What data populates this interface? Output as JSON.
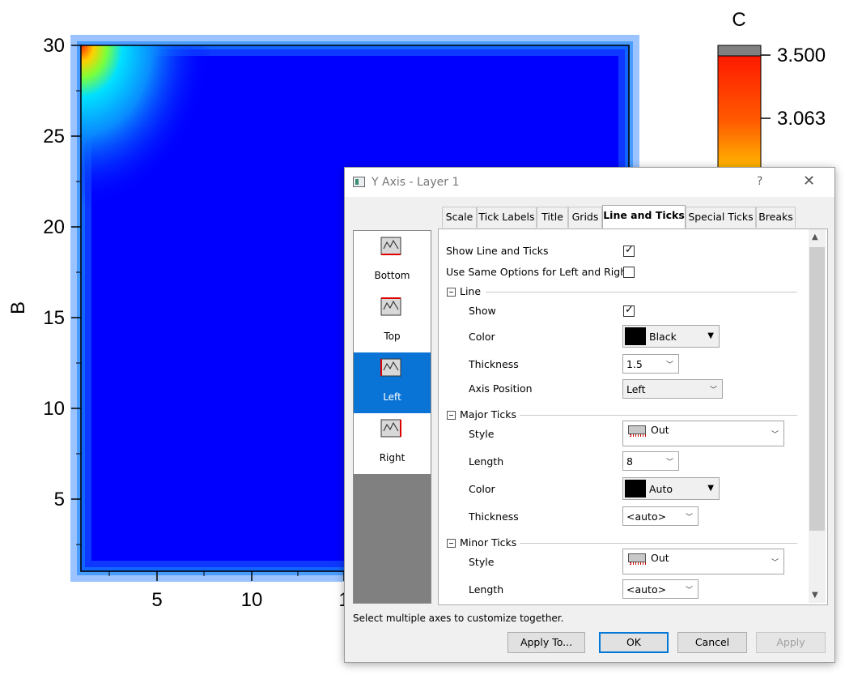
{
  "plot": {
    "y_ticks": [
      "30",
      "25",
      "20",
      "15",
      "10",
      "5"
    ],
    "x_ticks": [
      "5",
      "10",
      "1"
    ],
    "y_label": "B",
    "colorbar_title": "C",
    "colorbar_ticks": [
      "3.500",
      "3.063"
    ],
    "colors": {
      "fill": "#0000ff",
      "edge": "#1e7bff",
      "hot": "#ff2a00"
    }
  },
  "dialog": {
    "title": "Y Axis - Layer 1",
    "help_label": "?",
    "close_label": "✕",
    "tabs": [
      {
        "label": "Scale"
      },
      {
        "label": "Tick Labels"
      },
      {
        "label": "Title"
      },
      {
        "label": "Grids"
      },
      {
        "label": "Line and Ticks",
        "active": true
      },
      {
        "label": "Special Ticks"
      },
      {
        "label": "Breaks"
      }
    ],
    "axes": [
      {
        "label": "Bottom"
      },
      {
        "label": "Top"
      },
      {
        "label": "Left",
        "selected": true
      },
      {
        "label": "Right"
      }
    ],
    "panel": {
      "show_line_ticks": {
        "label": "Show Line and Ticks",
        "checked": true
      },
      "same_options": {
        "label": "Use Same Options for Left and Right",
        "checked": false
      },
      "line": {
        "header": "Line",
        "show": {
          "label": "Show",
          "checked": true
        },
        "color": {
          "label": "Color",
          "value": "Black"
        },
        "thickness": {
          "label": "Thickness",
          "value": "1.5"
        },
        "axis_position": {
          "label": "Axis Position",
          "value": "Left"
        }
      },
      "major": {
        "header": "Major Ticks",
        "style": {
          "label": "Style",
          "value": "Out"
        },
        "length": {
          "label": "Length",
          "value": "8"
        },
        "color": {
          "label": "Color",
          "value": "Auto"
        },
        "thickness": {
          "label": "Thickness",
          "value": "<auto>"
        }
      },
      "minor": {
        "header": "Minor Ticks",
        "style": {
          "label": "Style",
          "value": "Out"
        },
        "length": {
          "label": "Length",
          "value": "<auto>"
        }
      }
    },
    "hint": "Select multiple axes to customize together.",
    "buttons": {
      "apply_to": "Apply To...",
      "ok": "OK",
      "cancel": "Cancel",
      "apply": "Apply"
    }
  }
}
